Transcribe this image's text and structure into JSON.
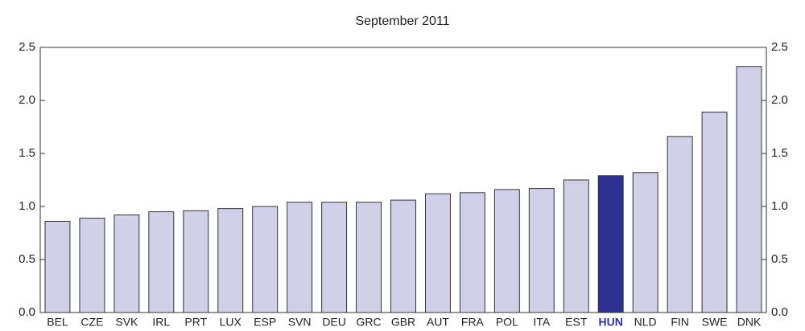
{
  "chart_data": {
    "type": "bar",
    "title": "September 2011",
    "categories": [
      "BEL",
      "CZE",
      "SVK",
      "IRL",
      "PRT",
      "LUX",
      "ESP",
      "SVN",
      "DEU",
      "GRC",
      "GBR",
      "AUT",
      "FRA",
      "POL",
      "ITA",
      "EST",
      "HUN",
      "NLD",
      "FIN",
      "SWE",
      "DNK"
    ],
    "values": [
      0.86,
      0.89,
      0.92,
      0.95,
      0.96,
      0.98,
      1.0,
      1.04,
      1.04,
      1.04,
      1.06,
      1.12,
      1.13,
      1.16,
      1.17,
      1.25,
      1.29,
      1.32,
      1.66,
      1.89,
      2.32
    ],
    "color": "#d0d0e8",
    "colors": [
      "#d0d0e8",
      "#d0d0e8",
      "#d0d0e8",
      "#d0d0e8",
      "#d0d0e8",
      "#d0d0e8",
      "#d0d0e8",
      "#d0d0e8",
      "#d0d0e8",
      "#d0d0e8",
      "#d0d0e8",
      "#d0d0e8",
      "#d0d0e8",
      "#d0d0e8",
      "#d0d0e8",
      "#d0d0e8",
      "#2e3192",
      "#d0d0e8",
      "#d0d0e8",
      "#d0d0e8",
      "#d0d0e8"
    ],
    "ylim": [
      0,
      2.5
    ],
    "yticks": [
      {
        "value": 0,
        "label": "0.0"
      },
      0.5,
      {
        "value": 1,
        "label": "1.0"
      },
      1.5,
      {
        "value": 2,
        "label": "2.0"
      },
      2.5
    ],
    "y2lim": [
      0,
      2.5
    ],
    "y2ticks": [
      {
        "value": 0,
        "label": "0.0"
      },
      0.5,
      {
        "value": 1,
        "label": "1.0"
      },
      1.5,
      {
        "value": 2,
        "label": "2.0"
      },
      2.5
    ],
    "grid": false
  }
}
